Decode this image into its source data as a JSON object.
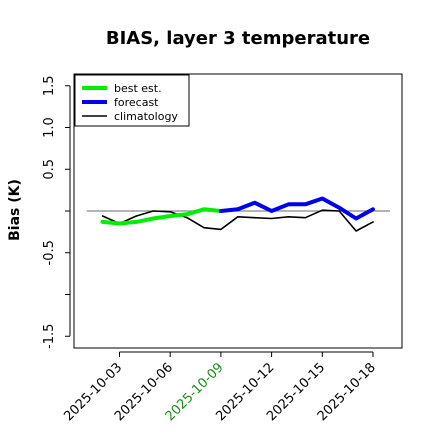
{
  "chart_data": {
    "type": "line",
    "title": "BIAS, layer 3 temperature",
    "xlabel": "",
    "ylabel": "Bias (K)",
    "ylim": [
      -1.6,
      1.6
    ],
    "y_ticks": [
      -1.5,
      -1.0,
      -0.5,
      0.0,
      0.5,
      1.0,
      1.5
    ],
    "y_tick_labels": [
      "-1.5",
      "",
      "-0.5",
      "",
      "0.5",
      "1.0",
      "1.5"
    ],
    "x_ticks": [
      "2025-10-03",
      "2025-10-06",
      "2025-10-09",
      "2025-10-12",
      "2025-10-15",
      "2025-10-18"
    ],
    "x_tick_colors": [
      "#000000",
      "#000000",
      "#1a8c1a",
      "#000000",
      "#000000",
      "#000000"
    ],
    "reference_line": 0.0,
    "legend_position": "top-left",
    "grid": false,
    "series": [
      {
        "name": "best est.",
        "color": "#00ee00",
        "x": [
          "2025-10-02",
          "2025-10-03",
          "2025-10-04",
          "2025-10-05",
          "2025-10-06",
          "2025-10-07",
          "2025-10-08",
          "2025-10-09"
        ],
        "values": [
          -0.13,
          -0.15,
          -0.13,
          -0.09,
          -0.06,
          -0.04,
          0.02,
          0.0
        ]
      },
      {
        "name": "forecast",
        "color": "#0000ee",
        "x": [
          "2025-10-09",
          "2025-10-10",
          "2025-10-11",
          "2025-10-12",
          "2025-10-13",
          "2025-10-14",
          "2025-10-15",
          "2025-10-16",
          "2025-10-17",
          "2025-10-18"
        ],
        "values": [
          0.0,
          0.02,
          0.1,
          0.0,
          0.08,
          0.08,
          0.15,
          0.04,
          -0.09,
          0.02
        ]
      },
      {
        "name": "climatology",
        "color": "#000000",
        "x": [
          "2025-10-02",
          "2025-10-03",
          "2025-10-04",
          "2025-10-05",
          "2025-10-06",
          "2025-10-07",
          "2025-10-08",
          "2025-10-09",
          "2025-10-10",
          "2025-10-11",
          "2025-10-12",
          "2025-10-13",
          "2025-10-14",
          "2025-10-15",
          "2025-10-16",
          "2025-10-17",
          "2025-10-18"
        ],
        "values": [
          -0.06,
          -0.15,
          -0.06,
          0.0,
          -0.01,
          -0.08,
          -0.2,
          -0.22,
          -0.07,
          -0.08,
          -0.09,
          -0.07,
          -0.08,
          0.01,
          0.0,
          -0.24,
          -0.13
        ]
      }
    ]
  }
}
